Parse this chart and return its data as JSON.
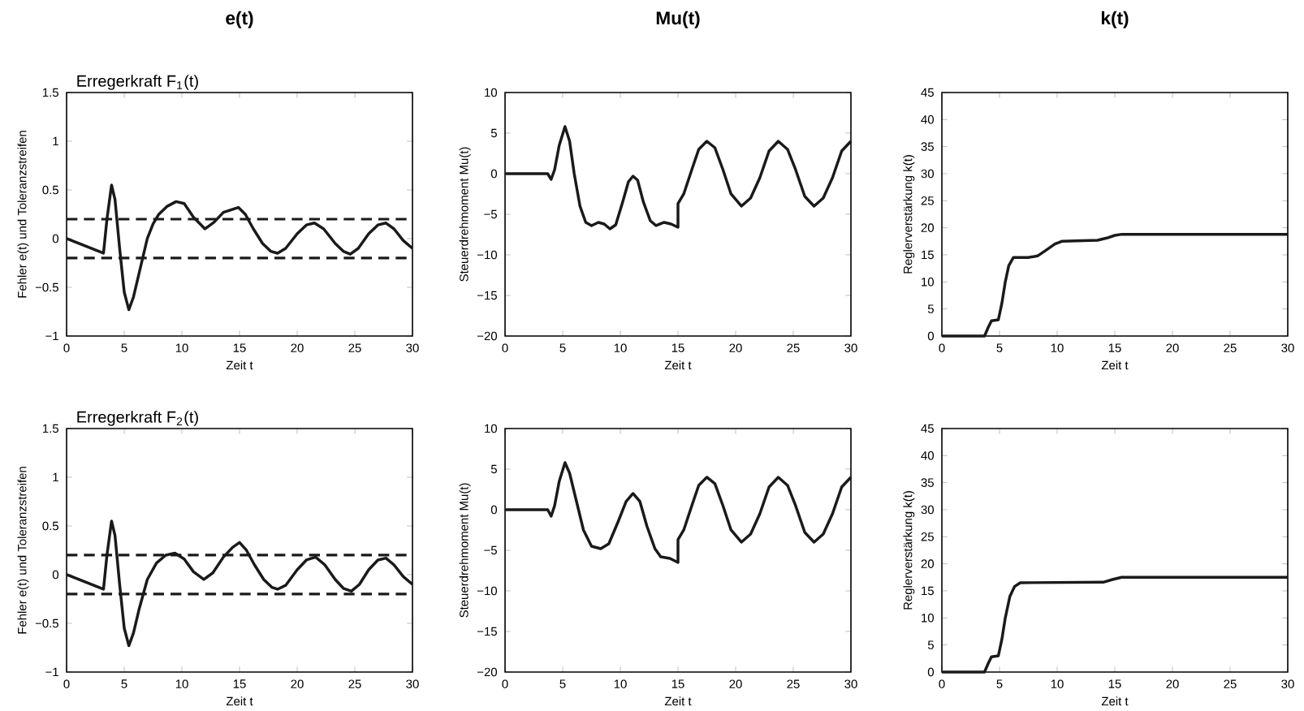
{
  "chart_data": [
    {
      "type": "line",
      "title": "e(t)",
      "subtitle": "Erregerkraft F$_{1}$(t)",
      "xlabel": "Zeit t",
      "ylabel": "Fehler e(t) und Toleranzstreifen",
      "x": [
        0,
        3.2,
        3.5,
        3.9,
        4.2,
        4.6,
        5,
        5.4,
        5.8,
        6.3,
        7,
        7.5,
        8,
        8.7,
        9.5,
        10.2,
        11,
        12,
        12.8,
        13.6,
        14.9,
        15.5,
        16.2,
        17,
        17.7,
        18.3,
        19,
        20,
        20.8,
        21.5,
        22.3,
        23.3,
        24,
        24.6,
        25.3,
        26.2,
        27,
        27.7,
        28.4,
        29.2,
        30
      ],
      "series": [
        {
          "color": "#1a1a1a",
          "values": [
            0,
            -0.15,
            0.2,
            0.55,
            0.4,
            -0.1,
            -0.55,
            -0.73,
            -0.6,
            -0.35,
            0,
            0.15,
            0.25,
            0.33,
            0.38,
            0.36,
            0.22,
            0.1,
            0.17,
            0.27,
            0.32,
            0.25,
            0.1,
            -0.05,
            -0.13,
            -0.15,
            -0.1,
            0.05,
            0.14,
            0.16,
            0.1,
            -0.05,
            -0.13,
            -0.16,
            -0.1,
            0.05,
            0.14,
            0.16,
            0.1,
            -0.02,
            -0.1
          ]
        }
      ],
      "ref_lines": [
        {
          "axis": "y",
          "value": 0.2,
          "color": "#1a1a1a",
          "line_style": "dashed"
        },
        {
          "axis": "y",
          "value": -0.2,
          "color": "#1a1a1a",
          "line_style": "dashed"
        }
      ],
      "xlim": [
        0,
        30
      ],
      "ylim": [
        -1,
        1.5
      ],
      "xticks": [
        0,
        5,
        10,
        15,
        20,
        25,
        30
      ],
      "yticks": [
        {
          "value": -1,
          "label": "−1"
        },
        {
          "value": -0.5,
          "label": "−0.5"
        },
        0,
        0.5,
        1,
        1.5
      ]
    },
    {
      "type": "line",
      "title": "Mu(t)",
      "xlabel": "Zeit t",
      "ylabel": "Steuerdrehmoment Mu(t)",
      "x": [
        0,
        3.7,
        4,
        4.3,
        4.7,
        5.2,
        5.6,
        6,
        6.5,
        7,
        7.5,
        8.1,
        8.6,
        9.1,
        9.6,
        10.2,
        10.7,
        11.1,
        11.5,
        12,
        12.6,
        13.1,
        13.8,
        14.4,
        15,
        15,
        15.5,
        16.2,
        16.8,
        17.5,
        18.2,
        18.9,
        19.6,
        20.5,
        21.3,
        22.1,
        22.9,
        23.7,
        24.5,
        25.2,
        26,
        26.8,
        27.6,
        28.4,
        29.2,
        30
      ],
      "series": [
        {
          "color": "#1a1a1a",
          "values": [
            0,
            0,
            -0.7,
            0.5,
            3.5,
            5.8,
            4,
            0,
            -4,
            -6,
            -6.4,
            -6,
            -6.2,
            -6.8,
            -6.3,
            -3.5,
            -1,
            -0.3,
            -0.8,
            -3.5,
            -5.8,
            -6.4,
            -6,
            -6.2,
            -6.6,
            -3.7,
            -2.5,
            0.5,
            3,
            4,
            3.2,
            0.5,
            -2.5,
            -4,
            -3,
            -0.5,
            2.8,
            4,
            3,
            0.5,
            -2.8,
            -4,
            -3,
            -0.5,
            2.8,
            4
          ]
        }
      ],
      "xlim": [
        0,
        30
      ],
      "ylim": [
        -20,
        10
      ],
      "xticks": [
        0,
        5,
        10,
        15,
        20,
        25,
        30
      ],
      "yticks": [
        {
          "value": -20,
          "label": "−20"
        },
        {
          "value": -15,
          "label": "−15"
        },
        {
          "value": -10,
          "label": "−10"
        },
        {
          "value": -5,
          "label": "−5"
        },
        0,
        5,
        10
      ]
    },
    {
      "type": "line",
      "title": "k(t)",
      "xlabel": "Zeit t",
      "ylabel": "Reglerverstärkung k(t)",
      "x": [
        0,
        3.7,
        4,
        4.3,
        4.9,
        5.2,
        5.5,
        5.8,
        6.2,
        7.5,
        8.3,
        9,
        9.8,
        10.4,
        13.5,
        14.3,
        15,
        15.6,
        30
      ],
      "series": [
        {
          "color": "#1a1a1a",
          "values": [
            0,
            0,
            1.5,
            2.8,
            3,
            6,
            10,
            13,
            14.5,
            14.5,
            14.8,
            15.8,
            17,
            17.5,
            17.7,
            18.1,
            18.6,
            18.8,
            18.8
          ]
        }
      ],
      "xlim": [
        0,
        30
      ],
      "ylim": [
        0,
        45
      ],
      "xticks": [
        0,
        5,
        10,
        15,
        20,
        25,
        30
      ],
      "yticks": [
        0,
        5,
        10,
        15,
        20,
        25,
        30,
        35,
        40,
        45
      ]
    },
    {
      "type": "line",
      "subtitle": "Erregerkraft F$_{2}$(t)",
      "xlabel": "Zeit t",
      "ylabel": "Fehler e(t) und Toleranzstreifen",
      "x": [
        0,
        3.2,
        3.5,
        3.9,
        4.2,
        4.6,
        5,
        5.4,
        5.8,
        6.3,
        7,
        7.8,
        8.6,
        9.4,
        10.2,
        11,
        11.9,
        12.7,
        13.6,
        14.4,
        15,
        15.6,
        16.3,
        17.1,
        17.8,
        18.3,
        19,
        20,
        20.8,
        21.6,
        22.4,
        23.3,
        24,
        24.7,
        25.4,
        26.2,
        27,
        27.7,
        28.4,
        29.2,
        30
      ],
      "series": [
        {
          "color": "#1a1a1a",
          "values": [
            0,
            -0.15,
            0.2,
            0.55,
            0.4,
            -0.1,
            -0.55,
            -0.73,
            -0.6,
            -0.35,
            -0.05,
            0.12,
            0.2,
            0.22,
            0.16,
            0.03,
            -0.05,
            0.02,
            0.18,
            0.28,
            0.33,
            0.25,
            0.1,
            -0.05,
            -0.13,
            -0.15,
            -0.11,
            0.05,
            0.15,
            0.18,
            0.1,
            -0.05,
            -0.14,
            -0.17,
            -0.1,
            0.05,
            0.15,
            0.17,
            0.1,
            -0.02,
            -0.1
          ]
        }
      ],
      "ref_lines": [
        {
          "axis": "y",
          "value": 0.2,
          "color": "#1a1a1a",
          "line_style": "dashed"
        },
        {
          "axis": "y",
          "value": -0.2,
          "color": "#1a1a1a",
          "line_style": "dashed"
        }
      ],
      "xlim": [
        0,
        30
      ],
      "ylim": [
        -1,
        1.5
      ],
      "xticks": [
        0,
        5,
        10,
        15,
        20,
        25,
        30
      ],
      "yticks": [
        {
          "value": -1,
          "label": "−1"
        },
        {
          "value": -0.5,
          "label": "−0.5"
        },
        0,
        0.5,
        1,
        1.5
      ]
    },
    {
      "type": "line",
      "xlabel": "Zeit t",
      "ylabel": "Steuerdrehmoment Mu(t)",
      "x": [
        0,
        3.7,
        4,
        4.3,
        4.7,
        5.2,
        5.6,
        6.2,
        6.8,
        7.5,
        8.3,
        9,
        9.8,
        10.5,
        11.1,
        11.7,
        12.3,
        13,
        13.5,
        14.3,
        15,
        15,
        15.5,
        16.2,
        16.8,
        17.5,
        18.2,
        18.9,
        19.6,
        20.5,
        21.3,
        22.1,
        22.9,
        23.7,
        24.5,
        25.2,
        26,
        26.8,
        27.6,
        28.4,
        29.2,
        30
      ],
      "series": [
        {
          "color": "#1a1a1a",
          "values": [
            0,
            0,
            -0.8,
            0.5,
            3.5,
            5.8,
            4.5,
            1,
            -2.5,
            -4.5,
            -4.8,
            -4.2,
            -1.5,
            1,
            2,
            1,
            -2,
            -4.8,
            -5.8,
            -6,
            -6.5,
            -3.7,
            -2.5,
            0.5,
            3,
            4,
            3.2,
            0.5,
            -2.5,
            -4,
            -3,
            -0.5,
            2.8,
            4,
            3,
            0.5,
            -2.8,
            -4,
            -3,
            -0.5,
            2.8,
            4
          ]
        }
      ],
      "xlim": [
        0,
        30
      ],
      "ylim": [
        -20,
        10
      ],
      "xticks": [
        0,
        5,
        10,
        15,
        20,
        25,
        30
      ],
      "yticks": [
        {
          "value": -20,
          "label": "−20"
        },
        {
          "value": -15,
          "label": "−15"
        },
        {
          "value": -10,
          "label": "−10"
        },
        {
          "value": -5,
          "label": "−5"
        },
        0,
        5,
        10
      ]
    },
    {
      "type": "line",
      "xlabel": "Zeit t",
      "ylabel": "Reglerverstärkung k(t)",
      "x": [
        0,
        3.7,
        4,
        4.3,
        4.9,
        5.2,
        5.5,
        5.9,
        6.3,
        6.8,
        14,
        14.8,
        15.6,
        30
      ],
      "series": [
        {
          "color": "#1a1a1a",
          "values": [
            0,
            0,
            1.5,
            2.8,
            3,
            6,
            10,
            14,
            15.8,
            16.5,
            16.6,
            17.1,
            17.5,
            17.5
          ]
        }
      ],
      "xlim": [
        0,
        30
      ],
      "ylim": [
        0,
        45
      ],
      "xticks": [
        0,
        5,
        10,
        15,
        20,
        25,
        30
      ],
      "yticks": [
        0,
        5,
        10,
        15,
        20,
        25,
        30,
        35,
        40,
        45
      ]
    }
  ]
}
